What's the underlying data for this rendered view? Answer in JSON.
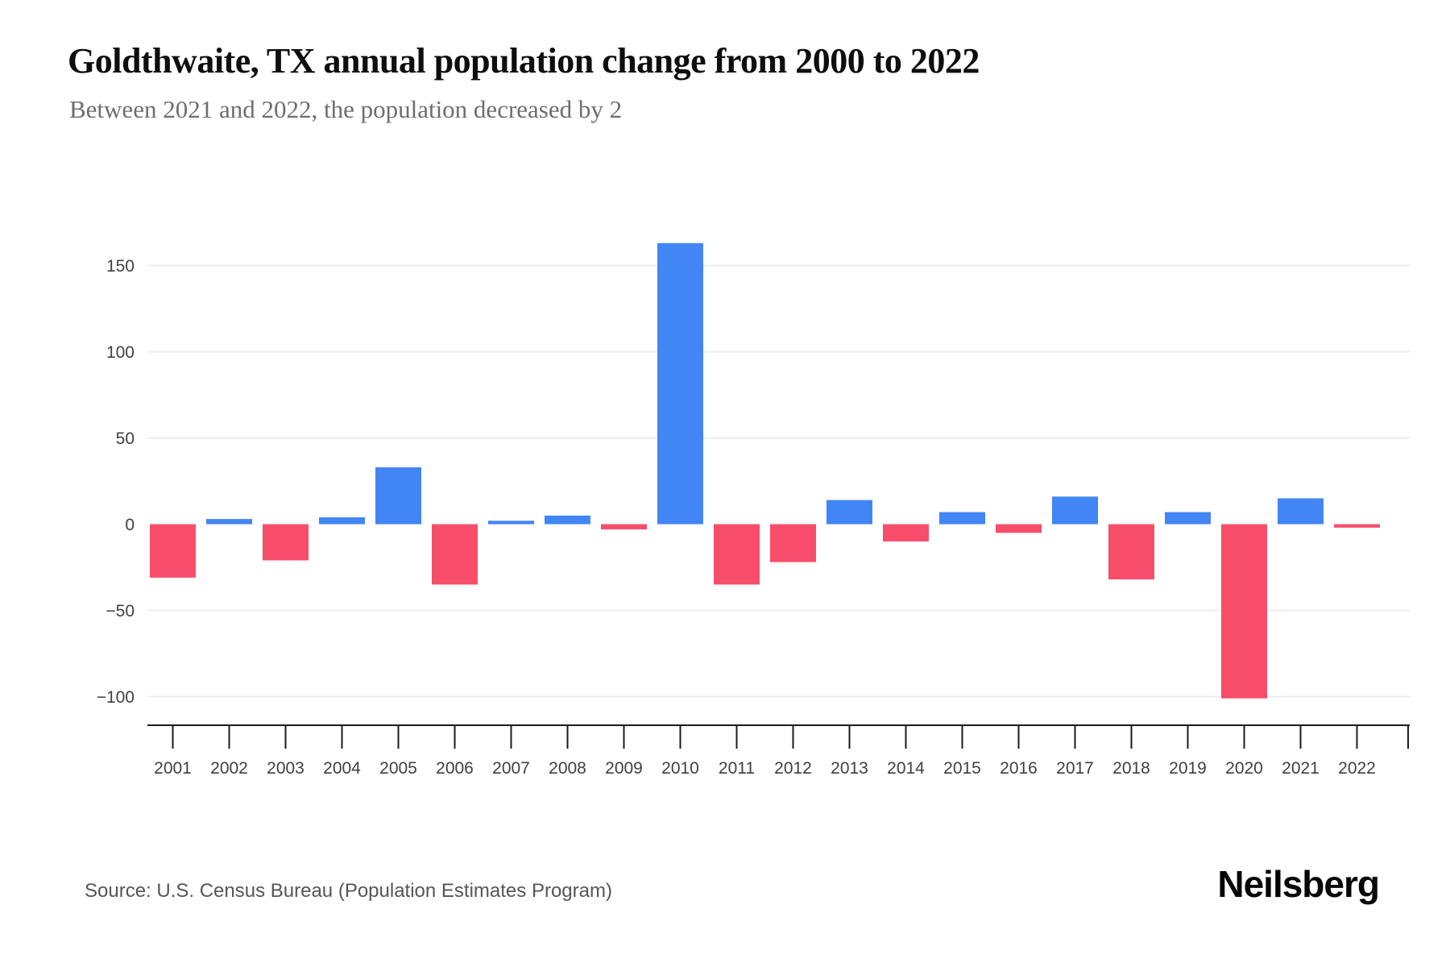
{
  "header": {
    "title": "Goldthwaite, TX annual population change from 2000 to 2022",
    "subtitle": "Between 2021 and 2022, the population decreased by 2"
  },
  "chart_data": {
    "type": "bar",
    "title": "Goldthwaite, TX annual population change from 2000 to 2022",
    "subtitle": "Between 2021 and 2022, the population decreased by 2",
    "xlabel": "",
    "ylabel": "",
    "categories": [
      "2001",
      "2002",
      "2003",
      "2004",
      "2005",
      "2006",
      "2007",
      "2008",
      "2009",
      "2010",
      "2011",
      "2012",
      "2013",
      "2014",
      "2015",
      "2016",
      "2017",
      "2018",
      "2019",
      "2020",
      "2021",
      "2022"
    ],
    "values": [
      -31,
      3,
      -21,
      4,
      33,
      -35,
      2,
      5,
      -3,
      163,
      -35,
      -22,
      14,
      -10,
      7,
      -5,
      16,
      -32,
      7,
      -101,
      15,
      -2
    ],
    "y_ticks": [
      150,
      100,
      50,
      0,
      -50,
      -100
    ],
    "ylim": [
      -117,
      178
    ],
    "grid": "horizontal-light",
    "legend": "none",
    "colors": {
      "positive_bar": "#4285F4",
      "negative_bar": "#F74D6A",
      "gridline": "#EDEDED",
      "axis": "#1b1b1b",
      "tick_label": "#404040"
    }
  },
  "footer": {
    "source": "Source: U.S. Census Bureau (Population Estimates Program)",
    "brand": "Neilsberg"
  }
}
